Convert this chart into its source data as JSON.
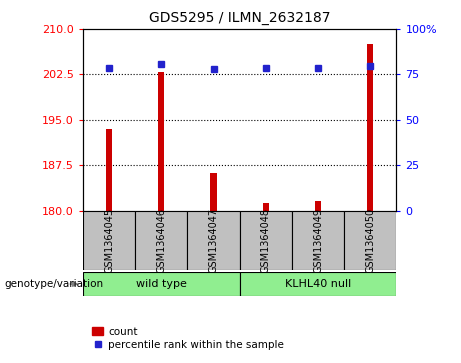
{
  "title": "GDS5295 / ILMN_2632187",
  "samples": [
    "GSM1364045",
    "GSM1364046",
    "GSM1364047",
    "GSM1364048",
    "GSM1364049",
    "GSM1364050"
  ],
  "counts": [
    193.5,
    202.9,
    186.2,
    181.2,
    181.5,
    207.5
  ],
  "percentile_ranks": [
    78.5,
    80.5,
    78.0,
    78.5,
    78.5,
    79.5
  ],
  "ylim_left": [
    180,
    210
  ],
  "ylim_right": [
    0,
    100
  ],
  "yticks_left": [
    180,
    187.5,
    195,
    202.5,
    210
  ],
  "yticks_right": [
    0,
    25,
    50,
    75,
    100
  ],
  "bar_color": "#CC0000",
  "marker_color": "#2222CC",
  "bar_width": 0.12,
  "genotype_label": "genotype/variation",
  "legend_count": "count",
  "legend_percentile": "percentile rank within the sample",
  "background_color": "#ffffff",
  "sample_box_color": "#C0C0C0",
  "group_color": "#90EE90",
  "wild_type_label": "wild type",
  "klhl40_label": "KLHL40 null"
}
